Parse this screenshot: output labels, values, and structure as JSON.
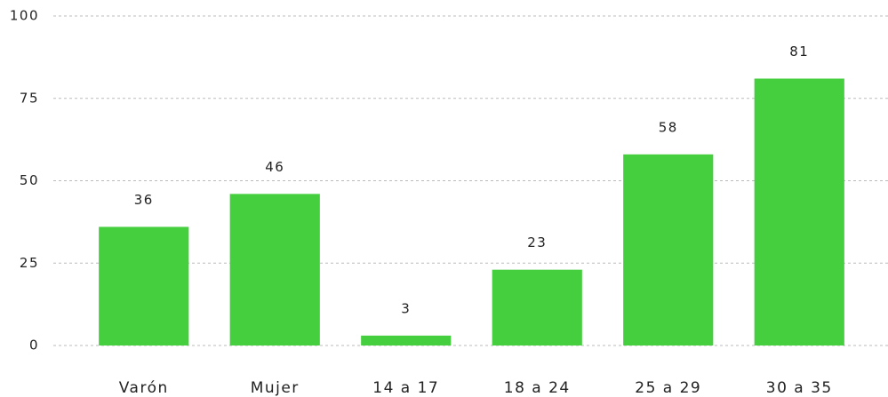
{
  "chart_data": {
    "type": "bar",
    "categories": [
      "Varón",
      "Mujer",
      "14 a 17",
      "18 a 24",
      "25 a 29",
      "30 a 35"
    ],
    "values": [
      36,
      46,
      3,
      23,
      58,
      81
    ],
    "color": "#45cf3f",
    "ylim": [
      0,
      100
    ],
    "yticks": [
      0,
      25,
      50,
      75,
      100
    ],
    "grid": true
  }
}
